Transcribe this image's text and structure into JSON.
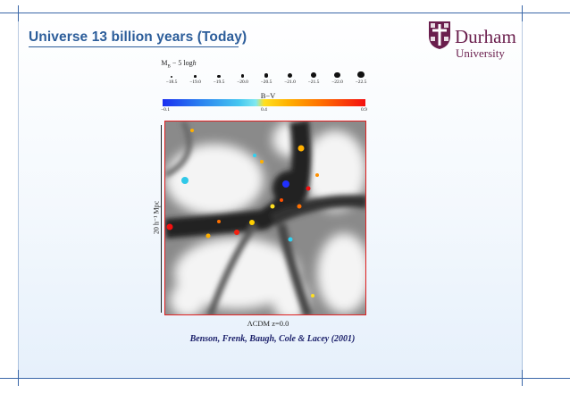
{
  "slide": {
    "title": "Universe 13 billion years (Today)",
    "logo": {
      "name_line1": "Durham",
      "name_line2": "University",
      "crest_icon": "durham-crest-icon",
      "color": "#6a1e4d"
    }
  },
  "figure": {
    "magnitude_title": "M",
    "magnitude_sub": "B",
    "magnitude_rest": " − 5 log",
    "magnitude_h": "h",
    "magnitudes": [
      "−18.5",
      "−19.0",
      "−19.5",
      "−20.0",
      "−20.5",
      "−21.0",
      "−21.5",
      "−22.0",
      "−22.5"
    ],
    "color_title": "B−V",
    "color_ticks": [
      "−0.1",
      "0.4",
      "0.9"
    ],
    "y_axis_label": "20 h⁻¹ Mpc",
    "model_label": "ΛCDM    z=0.0",
    "citation": "Benson, Frenk, Baugh, Cole & Lacey (2001)"
  },
  "colors": {
    "accent": "#2c5d9a",
    "frame": "#3a67a8",
    "sim_border": "#e02020"
  }
}
